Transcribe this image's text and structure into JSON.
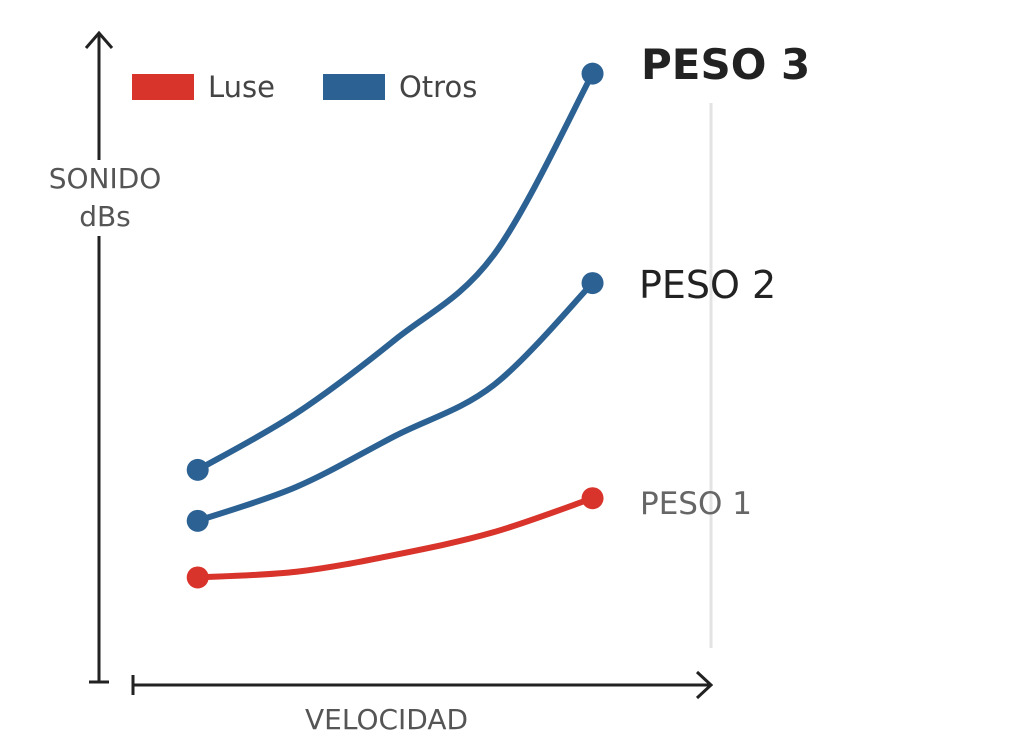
{
  "chart_data": {
    "type": "line",
    "title": "",
    "xlabel": "VELOCIDAD",
    "ylabel_lines": [
      "SONIDO",
      "dBs"
    ],
    "legend": {
      "placement": "top-left",
      "items": [
        {
          "name": "Luse",
          "color": "#d9342b"
        },
        {
          "name": "Otros",
          "color": "#2b6193"
        }
      ]
    },
    "series": [
      {
        "name": "PESO 3",
        "group": "Otros",
        "color": "#2b6193",
        "x": [
          1,
          2,
          3,
          4,
          5
        ],
        "y": [
          3.8,
          4.8,
          6.1,
          7.6,
          10.8
        ]
      },
      {
        "name": "PESO 2",
        "group": "Otros",
        "color": "#2b6193",
        "x": [
          1,
          2,
          3,
          4,
          5
        ],
        "y": [
          2.9,
          3.5,
          4.4,
          5.3,
          7.1
        ]
      },
      {
        "name": "PESO 1",
        "group": "Luse",
        "color": "#d9342b",
        "x": [
          1,
          2,
          3,
          4,
          5
        ],
        "y": [
          1.9,
          2.0,
          2.3,
          2.7,
          3.3
        ]
      }
    ],
    "xlim": [
      0,
      6.2
    ],
    "ylim": [
      0,
      11.5
    ],
    "grid": false
  }
}
